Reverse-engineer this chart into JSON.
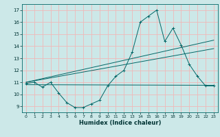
{
  "title": "",
  "xlabel": "Humidex (Indice chaleur)",
  "ylabel": "",
  "bg_color": "#cce8e8",
  "grid_color": "#f0b8b8",
  "line_color": "#006666",
  "xlim": [
    -0.5,
    23.5
  ],
  "ylim": [
    8.5,
    17.5
  ],
  "xticks": [
    0,
    1,
    2,
    3,
    4,
    5,
    6,
    7,
    8,
    9,
    10,
    11,
    12,
    13,
    14,
    15,
    16,
    17,
    18,
    19,
    20,
    21,
    22,
    23
  ],
  "yticks": [
    9,
    10,
    11,
    12,
    13,
    14,
    15,
    16,
    17
  ],
  "series": {
    "main": {
      "x": [
        0,
        1,
        2,
        3,
        4,
        5,
        6,
        7,
        8,
        9,
        10,
        11,
        12,
        13,
        14,
        15,
        16,
        17,
        18,
        19,
        20,
        21,
        22,
        23
      ],
      "y": [
        10.9,
        11.0,
        10.6,
        11.0,
        10.1,
        9.3,
        8.9,
        8.9,
        9.2,
        9.5,
        10.7,
        11.5,
        12.0,
        13.5,
        16.0,
        16.5,
        17.0,
        14.4,
        15.5,
        14.1,
        12.5,
        11.5,
        10.7,
        10.7
      ]
    },
    "upper_line": {
      "x": [
        0,
        23
      ],
      "y": [
        11.0,
        14.5
      ]
    },
    "mid_line": {
      "x": [
        0,
        23
      ],
      "y": [
        11.0,
        13.8
      ]
    },
    "lower_line": {
      "x": [
        0,
        23
      ],
      "y": [
        10.8,
        10.75
      ]
    }
  },
  "figsize": [
    3.2,
    2.0
  ],
  "dpi": 100
}
